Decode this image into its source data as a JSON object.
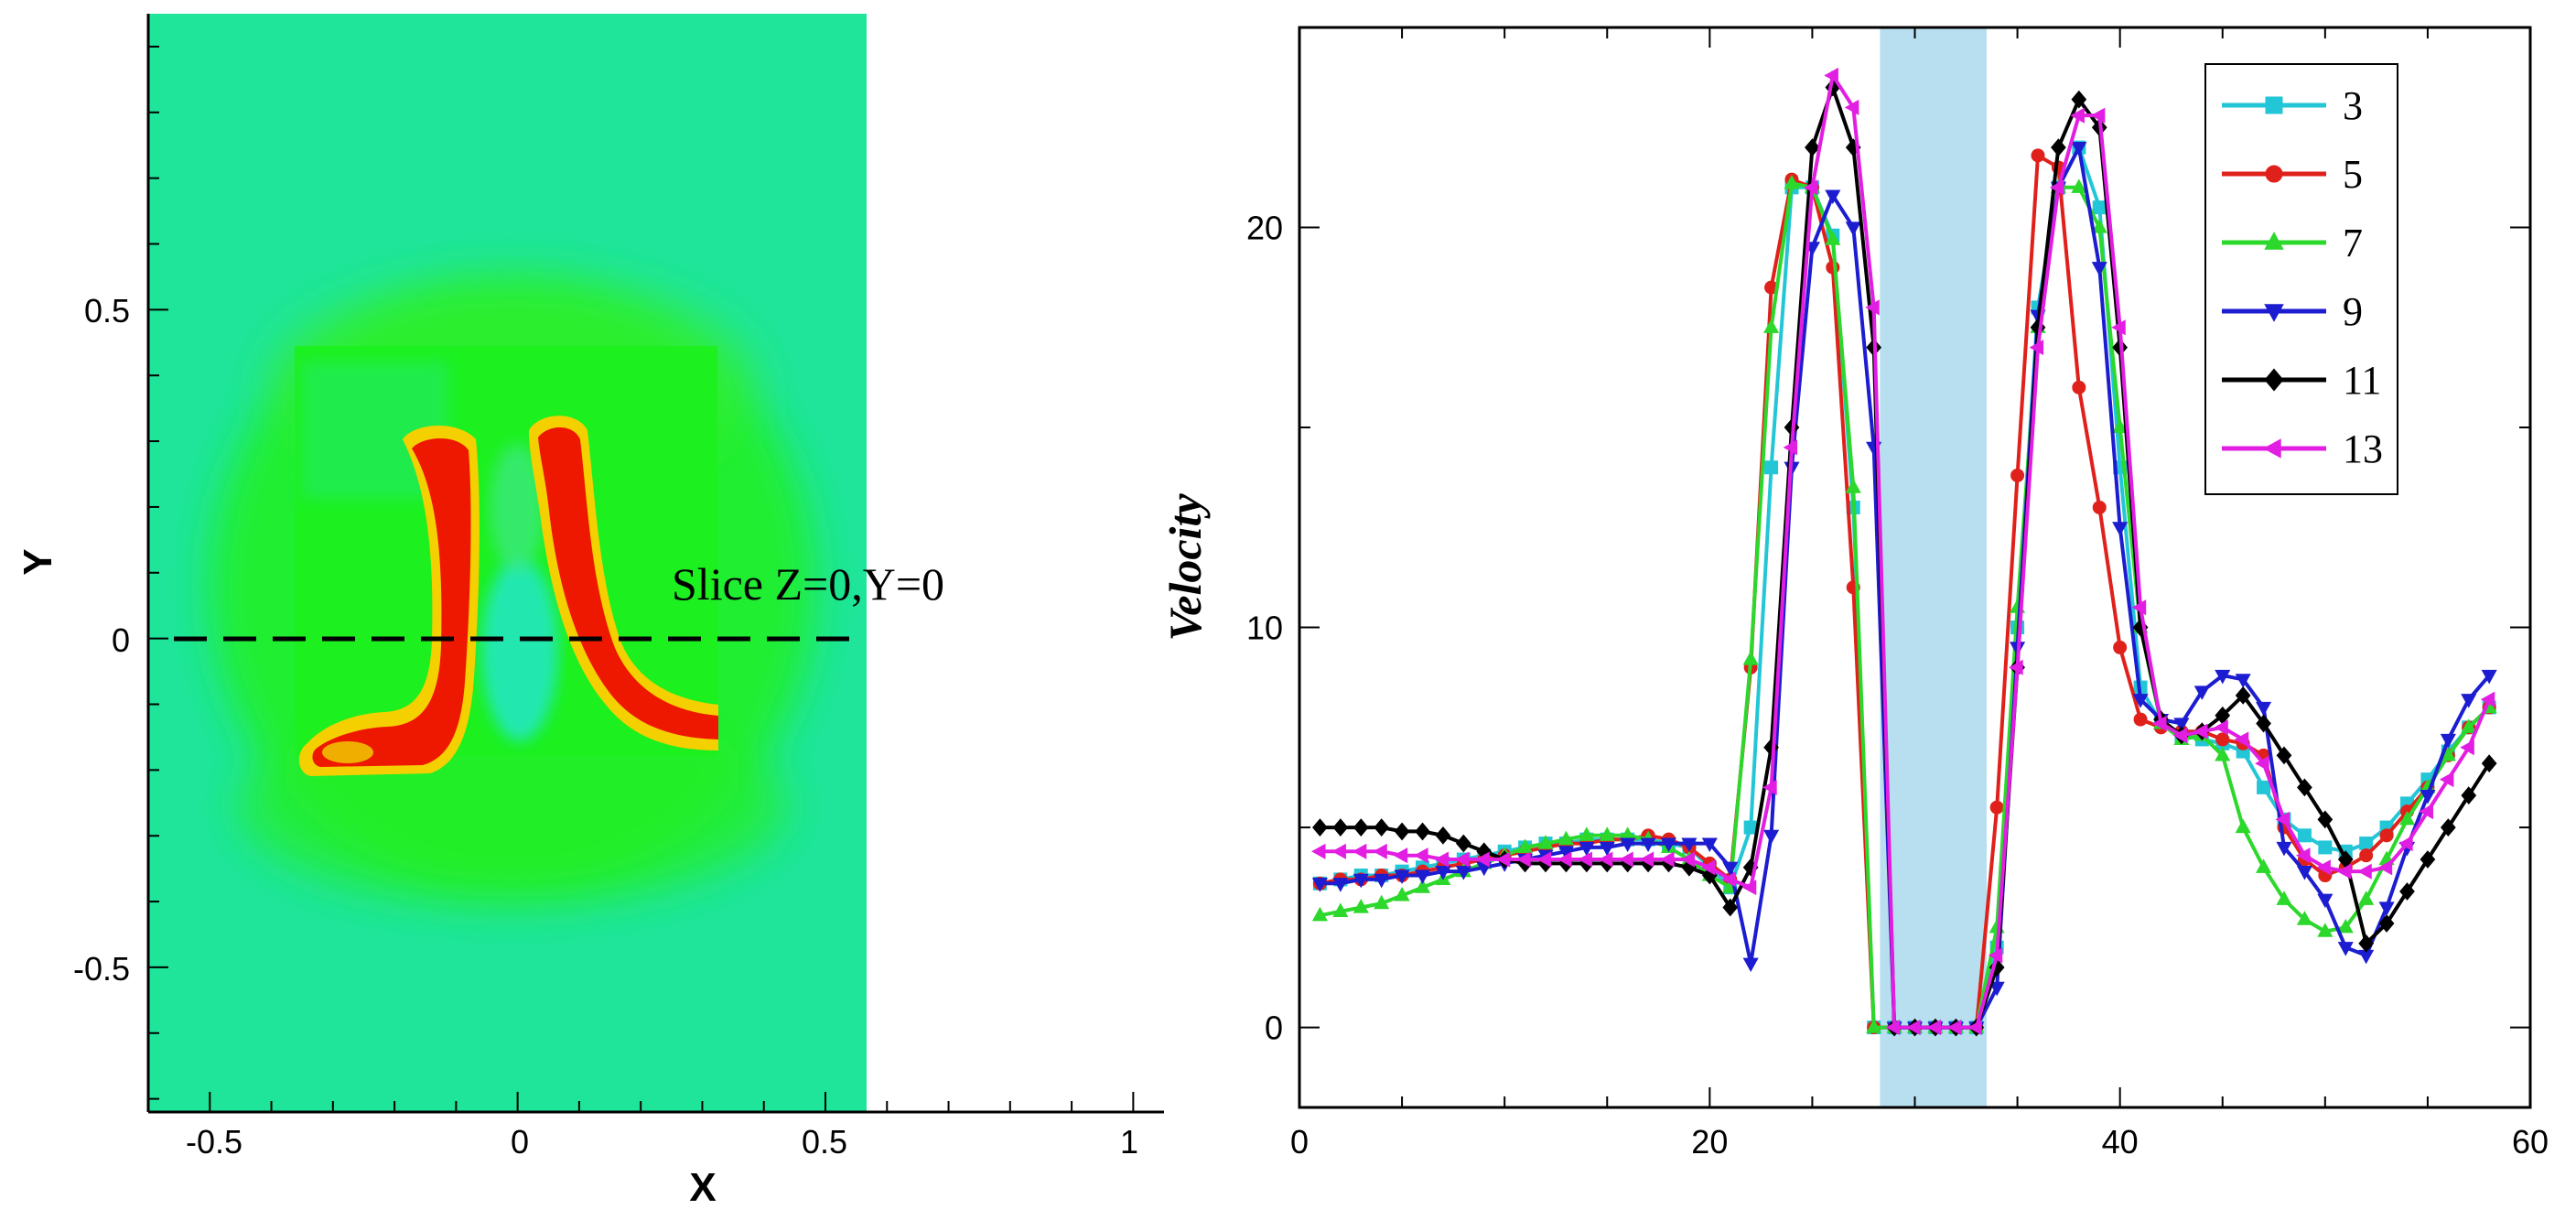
{
  "left_plot": {
    "type": "contour",
    "xlabel": "X",
    "ylabel": "Y",
    "xlim": [
      -0.6,
      1.05
    ],
    "ylim": [
      -0.72,
      0.95
    ],
    "x_ticks": [
      "-0.5",
      "0",
      "0.5",
      "1"
    ],
    "y_ticks": [
      "0.5",
      "0",
      "-0.5"
    ],
    "slice_label": "Slice Z=0,Y=0",
    "slice_y": 0,
    "domain_x_max": 0.57,
    "colors": {
      "background": "#1ee59a",
      "mid": "#1cf01f",
      "high": "#f01000",
      "hot": "#ffd400"
    }
  },
  "chart_data": {
    "type": "line",
    "ylabel": "Velocity",
    "xlabel": "",
    "xlim": [
      0,
      60
    ],
    "ylim": [
      -2,
      25
    ],
    "x_ticks": [
      "0",
      "20",
      "40",
      "60"
    ],
    "y_ticks": [
      "0",
      "10",
      "20"
    ],
    "legend_position": "top-right",
    "shaded_region": [
      28.3,
      33.5
    ],
    "shaded_color": "#b8dff0",
    "series": [
      {
        "name": "3",
        "color": "#22c6d6",
        "marker": "square",
        "x": [
          1,
          2,
          3,
          4,
          5,
          6,
          7,
          8,
          9,
          10,
          11,
          12,
          13,
          14,
          15,
          16,
          17,
          18,
          19,
          20,
          21,
          22,
          23,
          24,
          25,
          26,
          27,
          28,
          29,
          30,
          31,
          32,
          33,
          34,
          35,
          36,
          37,
          38,
          39,
          40,
          41,
          42,
          43,
          44,
          45,
          46,
          47,
          48,
          49,
          50,
          51,
          52,
          53,
          54,
          55,
          56,
          57,
          58
        ],
        "y": [
          3.6,
          3.7,
          3.8,
          3.8,
          3.9,
          4.0,
          4.1,
          4.2,
          4.3,
          4.4,
          4.5,
          4.6,
          4.6,
          4.7,
          4.7,
          4.7,
          4.7,
          4.6,
          4.5,
          4.0,
          3.5,
          5.0,
          14.0,
          21.0,
          21.0,
          19.8,
          13.0,
          0,
          0,
          0,
          0,
          0,
          0,
          2.0,
          10.0,
          18.0,
          21.0,
          22.0,
          20.5,
          14.0,
          8.5,
          7.6,
          7.3,
          7.2,
          7.1,
          6.9,
          6.0,
          5.2,
          4.8,
          4.5,
          4.4,
          4.6,
          5.0,
          5.6,
          6.2,
          6.9,
          7.5,
          8.0
        ]
      },
      {
        "name": "5",
        "color": "#e0201b",
        "marker": "circle",
        "x": [
          1,
          2,
          3,
          4,
          5,
          6,
          7,
          8,
          9,
          10,
          11,
          12,
          13,
          14,
          15,
          16,
          17,
          18,
          19,
          20,
          21,
          22,
          23,
          24,
          25,
          26,
          27,
          28,
          29,
          30,
          31,
          32,
          33,
          34,
          35,
          36,
          37,
          38,
          39,
          40,
          41,
          42,
          43,
          44,
          45,
          46,
          47,
          48,
          49,
          50,
          51,
          52,
          53,
          54,
          55,
          56,
          57,
          58
        ],
        "y": [
          3.6,
          3.7,
          3.7,
          3.8,
          3.8,
          3.9,
          4.0,
          4.1,
          4.2,
          4.3,
          4.4,
          4.5,
          4.6,
          4.6,
          4.7,
          4.7,
          4.8,
          4.7,
          4.5,
          4.1,
          3.7,
          9.0,
          18.5,
          21.2,
          21.0,
          19.0,
          11.0,
          0,
          0,
          0,
          0,
          0,
          0,
          5.5,
          13.8,
          21.8,
          21.5,
          16.0,
          13.0,
          9.5,
          7.7,
          7.5,
          7.4,
          7.4,
          7.2,
          7.1,
          6.8,
          5.0,
          4.2,
          3.8,
          4.0,
          4.3,
          4.8,
          5.4,
          6.0,
          6.8,
          7.5,
          8.0
        ]
      },
      {
        "name": "7",
        "color": "#2bd82b",
        "marker": "triangle-up",
        "x": [
          1,
          2,
          3,
          4,
          5,
          6,
          7,
          8,
          9,
          10,
          11,
          12,
          13,
          14,
          15,
          16,
          17,
          18,
          19,
          20,
          21,
          22,
          23,
          24,
          25,
          26,
          27,
          28,
          29,
          30,
          31,
          32,
          33,
          34,
          35,
          36,
          37,
          38,
          39,
          40,
          41,
          42,
          43,
          44,
          45,
          46,
          47,
          48,
          49,
          50,
          51,
          52,
          53,
          54,
          55,
          56,
          57,
          58
        ],
        "y": [
          2.8,
          2.9,
          3.0,
          3.1,
          3.3,
          3.5,
          3.7,
          3.9,
          4.1,
          4.3,
          4.5,
          4.6,
          4.7,
          4.8,
          4.8,
          4.8,
          4.7,
          4.5,
          4.2,
          3.8,
          3.5,
          9.2,
          17.5,
          21.1,
          21.0,
          19.7,
          13.5,
          0,
          0,
          0,
          0,
          0,
          0,
          2.5,
          10.5,
          17.5,
          21.0,
          21.0,
          20.0,
          15.0,
          10.0,
          7.6,
          7.2,
          7.3,
          6.8,
          5.0,
          4.0,
          3.2,
          2.7,
          2.4,
          2.5,
          3.2,
          4.2,
          5.2,
          6.0,
          6.8,
          7.5,
          8.0
        ]
      },
      {
        "name": "9",
        "color": "#1c1cd0",
        "marker": "triangle-down",
        "x": [
          1,
          2,
          3,
          4,
          5,
          6,
          7,
          8,
          9,
          10,
          11,
          12,
          13,
          14,
          15,
          16,
          17,
          18,
          19,
          20,
          21,
          22,
          23,
          24,
          25,
          26,
          27,
          28,
          29,
          30,
          31,
          32,
          33,
          34,
          35,
          36,
          37,
          38,
          39,
          40,
          41,
          42,
          43,
          44,
          45,
          46,
          47,
          48,
          49,
          50,
          51,
          52,
          53,
          54,
          55,
          56,
          57,
          58
        ],
        "y": [
          3.6,
          3.6,
          3.7,
          3.7,
          3.8,
          3.8,
          3.9,
          3.9,
          4.0,
          4.1,
          4.2,
          4.3,
          4.4,
          4.5,
          4.5,
          4.6,
          4.6,
          4.6,
          4.6,
          4.6,
          4.0,
          1.6,
          4.8,
          14.0,
          19.5,
          20.8,
          20.0,
          14.5,
          0,
          0,
          0,
          0,
          0,
          1.0,
          9.5,
          17.8,
          21.0,
          22.0,
          19.0,
          12.5,
          8.2,
          7.7,
          7.6,
          8.4,
          8.8,
          8.7,
          8.0,
          4.5,
          3.9,
          3.2,
          2.0,
          1.8,
          3.0,
          4.5,
          5.8,
          7.2,
          8.2,
          8.8
        ]
      },
      {
        "name": "11",
        "color": "#000000",
        "marker": "diamond",
        "x": [
          1,
          2,
          3,
          4,
          5,
          6,
          7,
          8,
          9,
          10,
          11,
          12,
          13,
          14,
          15,
          16,
          17,
          18,
          19,
          20,
          21,
          22,
          23,
          24,
          25,
          26,
          27,
          28,
          29,
          30,
          31,
          32,
          33,
          34,
          35,
          36,
          37,
          38,
          39,
          40,
          41,
          42,
          43,
          44,
          45,
          46,
          47,
          48,
          49,
          50,
          51,
          52,
          53,
          54,
          55,
          56,
          57,
          58
        ],
        "y": [
          5.0,
          5.0,
          5.0,
          5.0,
          4.9,
          4.9,
          4.8,
          4.6,
          4.4,
          4.2,
          4.1,
          4.1,
          4.1,
          4.1,
          4.1,
          4.1,
          4.1,
          4.1,
          4.0,
          3.8,
          3.0,
          4.0,
          7.0,
          15.0,
          22.0,
          23.5,
          22.0,
          17.0,
          0,
          0,
          0,
          0,
          0,
          1.5,
          9.0,
          17.5,
          22.0,
          23.2,
          22.5,
          17.0,
          10.0,
          7.7,
          7.3,
          7.4,
          7.8,
          8.3,
          7.6,
          6.8,
          6.0,
          5.2,
          4.2,
          2.1,
          2.6,
          3.4,
          4.2,
          5.0,
          5.8,
          6.6
        ]
      },
      {
        "name": "13",
        "color": "#e21ee2",
        "marker": "triangle-left",
        "x": [
          1,
          2,
          3,
          4,
          5,
          6,
          7,
          8,
          9,
          10,
          11,
          12,
          13,
          14,
          15,
          16,
          17,
          18,
          19,
          20,
          21,
          22,
          23,
          24,
          25,
          26,
          27,
          28,
          29,
          30,
          31,
          32,
          33,
          34,
          35,
          36,
          37,
          38,
          39,
          40,
          41,
          42,
          43,
          44,
          45,
          46,
          47,
          48,
          49,
          50,
          51,
          52,
          53,
          54,
          55,
          56,
          57,
          58
        ],
        "y": [
          4.4,
          4.4,
          4.4,
          4.4,
          4.3,
          4.3,
          4.2,
          4.2,
          4.2,
          4.2,
          4.2,
          4.2,
          4.2,
          4.2,
          4.2,
          4.2,
          4.2,
          4.2,
          4.2,
          4.0,
          3.7,
          3.5,
          6.0,
          14.5,
          21.0,
          23.8,
          23.0,
          18.0,
          0,
          0,
          0,
          0,
          0,
          1.8,
          9.0,
          17.0,
          21.0,
          22.8,
          22.8,
          17.5,
          10.5,
          7.6,
          7.3,
          7.4,
          7.5,
          7.2,
          6.6,
          5.2,
          4.3,
          4.0,
          3.9,
          3.9,
          4.0,
          4.6,
          5.4,
          6.2,
          7.0,
          8.2
        ]
      }
    ]
  }
}
